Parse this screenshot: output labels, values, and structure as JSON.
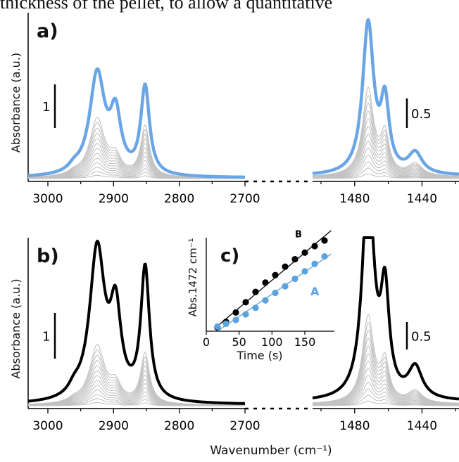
{
  "caption_fragment": "thickness of the pellet, to allow a quantitative",
  "panels": [
    {
      "label": "a)",
      "ylabel": "Absorbance (a.u.)",
      "scale_bar_left": "1",
      "scale_bar_right": "0.5",
      "accent": "#6aa6e6"
    },
    {
      "label": "b)",
      "ylabel": "Absorbance (a.u.)",
      "scale_bar_left": "1",
      "scale_bar_right": "0.5",
      "accent": "#000000"
    }
  ],
  "xlabel": "Wavenumber (cm⁻¹)",
  "xticks_left": [
    "3000",
    "2900",
    "2800",
    "2700"
  ],
  "xticks_right": [
    "1480",
    "1440"
  ],
  "inset": {
    "label": "c)",
    "xlabel": "Time (s)",
    "ylabel": "Abs.1472 cm⁻¹",
    "xticks": [
      "0",
      "50",
      "100",
      "150"
    ]
  },
  "chart_data": [
    {
      "type": "line",
      "panel": "a",
      "x_axis": "wavenumber",
      "x_segments": [
        [
          3030,
          2700
        ],
        [
          1505,
          1418
        ]
      ],
      "series": [
        {
          "role": "final spectrum",
          "color": "#6aa6e6",
          "peaks": [
            {
              "x": 2925,
              "height": 1.6
            },
            {
              "x": 2897,
              "height": 1.05
            },
            {
              "x": 2852,
              "height": 1.35
            },
            {
              "x": 1472,
              "height": 0.62
            },
            {
              "x": 1462,
              "height": 0.35
            },
            {
              "x": 1444,
              "height": 0.1
            }
          ]
        },
        {
          "role": "intermediate spectra",
          "color": "#c2c2c2",
          "count": 13
        }
      ]
    },
    {
      "type": "line",
      "panel": "b",
      "x_axis": "wavenumber",
      "x_segments": [
        [
          3030,
          2700
        ],
        [
          1505,
          1418
        ]
      ],
      "series": [
        {
          "role": "final spectrum",
          "color": "#000000",
          "peaks": [
            {
              "x": 2925,
              "height": 2.4
            },
            {
              "x": 2897,
              "height": 1.15
            },
            {
              "x": 2852,
              "height": 2.1
            },
            {
              "x": 1472,
              "height": 0.92
            },
            {
              "x": 1462,
              "height": 0.5
            },
            {
              "x": 1444,
              "height": 0.12
            }
          ]
        },
        {
          "role": "intermediate spectra",
          "color": "#c2c2c2",
          "count": 13
        }
      ]
    },
    {
      "type": "scatter",
      "panel": "c",
      "xlim": [
        0,
        195
      ],
      "ylim": [
        0,
        1
      ],
      "series": [
        {
          "name": "B",
          "color": "#000000",
          "x": [
            17,
            30,
            45,
            60,
            75,
            90,
            105,
            120,
            135,
            150,
            165,
            180
          ],
          "y": [
            0.04,
            0.1,
            0.2,
            0.31,
            0.42,
            0.52,
            0.6,
            0.69,
            0.77,
            0.84,
            0.91,
            0.97
          ]
        },
        {
          "name": "A",
          "color": "#5ba3e0",
          "x": [
            17,
            30,
            45,
            60,
            75,
            90,
            105,
            120,
            135,
            150,
            165,
            180
          ],
          "y": [
            0.05,
            0.08,
            0.12,
            0.18,
            0.25,
            0.33,
            0.41,
            0.48,
            0.56,
            0.64,
            0.72,
            0.8
          ]
        }
      ]
    }
  ]
}
